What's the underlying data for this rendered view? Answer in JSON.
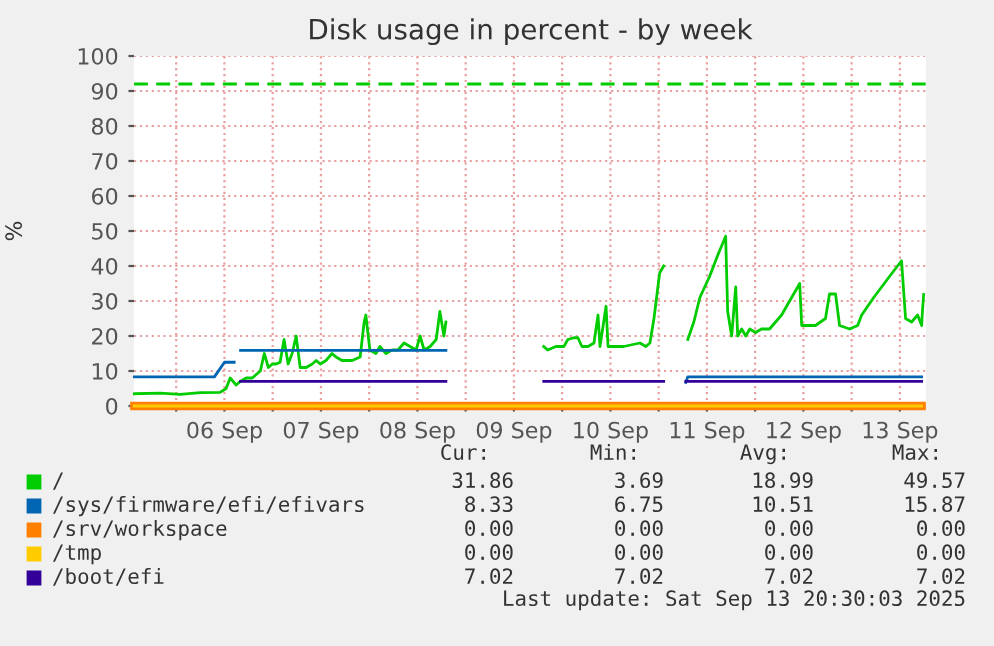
{
  "chart_data": {
    "type": "line",
    "title": "Disk usage in percent - by week",
    "ylabel": "%",
    "xlim": [
      "2025-09-05T13:30",
      "2025-09-13T18:30"
    ],
    "xticks": [
      {
        "value": "2025-09-06T00:00",
        "label": null
      },
      {
        "value": "2025-09-06T12:00",
        "label": "06 Sep"
      },
      {
        "value": "2025-09-07T00:00",
        "label": null
      },
      {
        "value": "2025-09-07T12:00",
        "label": "07 Sep"
      },
      {
        "value": "2025-09-08T00:00",
        "label": null
      },
      {
        "value": "2025-09-08T12:00",
        "label": "08 Sep"
      },
      {
        "value": "2025-09-09T00:00",
        "label": null
      },
      {
        "value": "2025-09-09T12:00",
        "label": "09 Sep"
      },
      {
        "value": "2025-09-10T00:00",
        "label": null
      },
      {
        "value": "2025-09-10T12:00",
        "label": "10 Sep"
      },
      {
        "value": "2025-09-11T00:00",
        "label": null
      },
      {
        "value": "2025-09-11T12:00",
        "label": "11 Sep"
      },
      {
        "value": "2025-09-12T00:00",
        "label": null
      },
      {
        "value": "2025-09-12T12:00",
        "label": "12 Sep"
      },
      {
        "value": "2025-09-13T00:00",
        "label": null
      },
      {
        "value": "2025-09-13T12:00",
        "label": "13 Sep"
      }
    ],
    "ylim": [
      0,
      100
    ],
    "yticks": [
      0,
      10,
      20,
      30,
      40,
      50,
      60,
      70,
      80,
      90,
      100
    ],
    "grid": true,
    "legend": "bottom",
    "marker": "none",
    "line_style": "solid",
    "ref_lines": [
      {
        "axis": "y",
        "value": 92,
        "color": "#00cc00",
        "line_style": "dashed"
      }
    ],
    "series": [
      {
        "name": "/",
        "color": "#00cc00",
        "x": [
          "2025-09-05T13:35",
          "2025-09-05T20:00",
          "2025-09-06T01:00",
          "2025-09-06T06:00",
          "2025-09-06T10:55",
          "2025-09-06T12:25",
          "2025-09-06T13:25",
          "2025-09-06T14:55",
          "2025-09-06T15:55",
          "2025-09-06T17:25",
          "2025-09-06T18:55",
          "2025-09-06T19:55",
          "2025-09-06T20:55",
          "2025-09-06T21:55",
          "2025-09-06T22:55",
          "2025-09-06T23:55",
          "2025-09-07T00:50",
          "2025-09-07T01:50",
          "2025-09-07T02:50",
          "2025-09-07T03:50",
          "2025-09-07T04:50",
          "2025-09-07T05:50",
          "2025-09-07T06:50",
          "2025-09-07T08:20",
          "2025-09-07T09:50",
          "2025-09-07T10:50",
          "2025-09-07T11:50",
          "2025-09-07T13:15",
          "2025-09-07T14:45",
          "2025-09-07T15:45",
          "2025-09-07T17:15",
          "2025-09-07T18:45",
          "2025-09-07T19:45",
          "2025-09-07T21:45",
          "2025-09-07T22:45",
          "2025-09-07T23:10",
          "2025-09-08T00:10",
          "2025-09-08T01:40",
          "2025-09-08T02:40",
          "2025-09-08T04:10",
          "2025-09-08T05:40",
          "2025-09-08T07:10",
          "2025-09-08T08:40",
          "2025-09-08T10:10",
          "2025-09-08T11:40",
          "2025-09-08T12:40",
          "2025-09-08T13:40",
          "2025-09-08T15:10",
          "2025-09-08T16:40",
          "2025-09-08T17:35",
          "2025-09-08T18:35",
          "2025-09-08T19:05",
          "2025-09-09T06:00",
          "2025-09-09T19:25",
          "2025-09-09T20:25",
          "2025-09-09T22:25",
          "2025-09-10T00:25",
          "2025-09-10T01:25",
          "2025-09-10T02:55",
          "2025-09-10T03:55",
          "2025-09-10T04:55",
          "2025-09-10T06:25",
          "2025-09-10T07:55",
          "2025-09-10T08:55",
          "2025-09-10T09:25",
          "2025-09-10T10:55",
          "2025-09-10T11:25",
          "2025-09-10T12:50",
          "2025-09-10T15:20",
          "2025-09-10T17:20",
          "2025-09-10T19:20",
          "2025-09-10T20:50",
          "2025-09-10T21:50",
          "2025-09-10T22:50",
          "2025-09-11T00:15",
          "2025-09-11T01:15",
          "2025-09-11T04:00",
          "2025-09-11T07:15",
          "2025-09-11T08:45",
          "2025-09-11T10:15",
          "2025-09-11T12:40",
          "2025-09-11T14:40",
          "2025-09-11T16:40",
          "2025-09-11T17:10",
          "2025-09-11T18:10",
          "2025-09-11T19:10",
          "2025-09-11T19:40",
          "2025-09-11T20:40",
          "2025-09-11T21:40",
          "2025-09-11T22:40",
          "2025-09-12T00:05",
          "2025-09-12T01:35",
          "2025-09-12T03:35",
          "2025-09-12T05:05",
          "2025-09-12T06:35",
          "2025-09-12T08:05",
          "2025-09-12T11:05",
          "2025-09-12T11:35",
          "2025-09-12T13:05",
          "2025-09-12T15:00",
          "2025-09-12T17:30",
          "2025-09-12T18:30",
          "2025-09-12T20:00",
          "2025-09-12T21:00",
          "2025-09-12T23:30",
          "2025-09-13T01:30",
          "2025-09-13T02:30",
          "2025-09-13T05:30",
          "2025-09-13T09:25",
          "2025-09-13T12:25",
          "2025-09-13T13:25",
          "2025-09-13T14:55",
          "2025-09-13T16:25",
          "2025-09-13T17:25",
          "2025-09-13T17:40",
          "2025-09-13T17:55"
        ],
        "values": [
          3.5,
          3.7,
          3.3,
          3.8,
          3.9,
          5,
          8,
          6,
          7,
          8,
          8,
          9,
          10,
          15,
          11,
          12,
          12,
          12.5,
          19,
          12,
          15,
          20,
          11,
          11,
          12,
          13,
          12,
          13,
          15,
          14,
          13,
          13,
          13,
          14,
          24,
          26,
          16,
          15,
          17,
          15,
          16,
          16,
          18,
          17,
          16,
          20,
          16,
          17,
          19,
          27,
          20,
          24,
          null,
          17,
          16,
          17,
          17,
          19,
          19.5,
          19.5,
          17,
          17,
          18,
          26,
          17,
          28.5,
          17,
          17,
          17,
          17.5,
          18,
          17,
          18,
          25,
          38,
          40,
          null,
          19,
          24,
          31,
          37,
          43,
          48.5,
          27,
          20,
          34,
          20,
          22,
          20,
          22,
          21,
          22,
          22,
          24,
          26,
          29,
          35,
          23,
          23,
          23,
          25,
          32,
          32,
          23,
          22,
          23,
          26,
          31,
          37,
          41.5,
          25,
          24,
          26,
          23,
          28,
          31.86
        ]
      },
      {
        "name": "/sys/firmware/efi/efivars",
        "color": "#0066b3",
        "x": [
          "2025-09-05T13:35",
          "2025-09-06T09:30",
          "2025-09-06T12:00",
          "2025-09-06T14:25",
          "2025-09-06T15:00",
          "2025-09-06T16:00",
          "2025-09-08T19:05",
          "2025-09-09T12:00",
          "2025-09-11T06:45",
          "2025-09-11T07:15",
          "2025-09-13T17:25"
        ],
        "values": [
          8.33,
          8.33,
          12.5,
          12.5,
          null,
          15.87,
          15.87,
          null,
          6.75,
          8.33,
          8.33
        ]
      },
      {
        "name": "/srv/workspace",
        "color": "#ff8000",
        "x": [
          "2025-09-05T13:35",
          "2025-09-13T17:25"
        ],
        "values": [
          0,
          0
        ]
      },
      {
        "name": "/tmp",
        "color": "#ffcc00",
        "x": [
          "2025-09-05T13:35",
          "2025-09-13T17:25"
        ],
        "values": [
          0,
          0
        ]
      },
      {
        "name": "/boot/efi",
        "color": "#330099",
        "x": [
          "2025-09-06T16:00",
          "2025-09-08T19:05",
          "2025-09-09T12:00",
          "2025-09-09T19:25",
          "2025-09-11T01:15",
          "2025-09-11T04:00",
          "2025-09-11T06:45",
          "2025-09-13T17:25"
        ],
        "values": [
          7.02,
          7.02,
          null,
          7.02,
          7.02,
          null,
          7.02,
          7.02
        ]
      }
    ],
    "annotations": [
      "Cur:",
      "Min:",
      "Avg:",
      "Max:",
      "31.86",
      "3.69",
      "18.99",
      "49.57",
      "8.33",
      "6.75",
      "10.51",
      "15.87",
      "0.00",
      "0.00",
      "0.00",
      "0.00",
      "0.00",
      "0.00",
      "0.00",
      "0.00",
      "7.02",
      "7.02",
      "7.02",
      "7.02",
      "Last update: Sat Sep 13 20:30:03 2025"
    ]
  }
}
